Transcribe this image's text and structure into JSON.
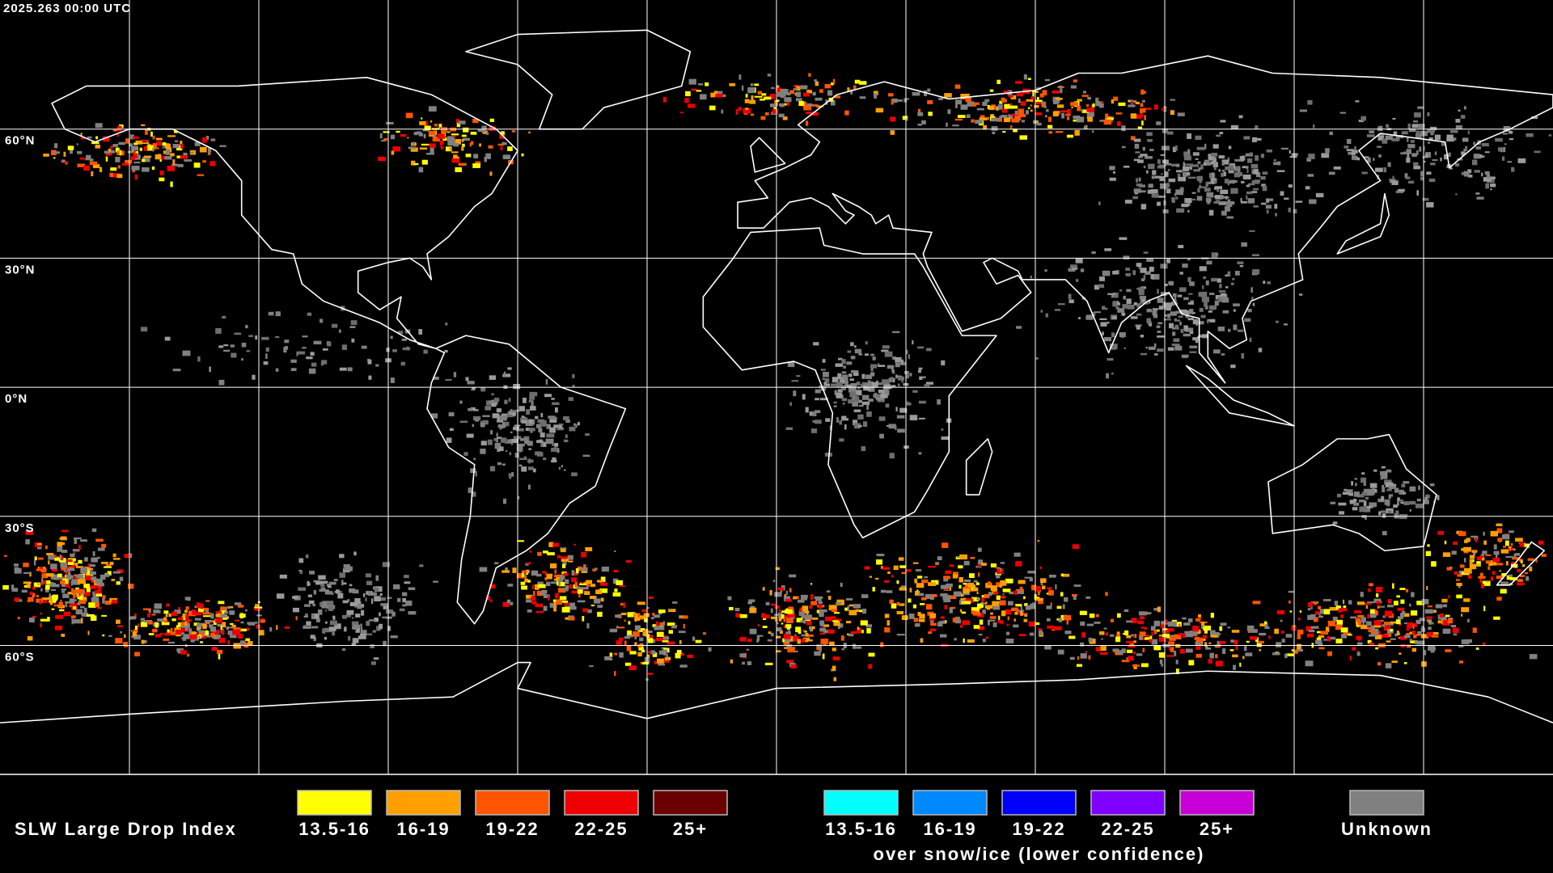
{
  "header": {
    "timestamp": "2025.263 00:00 UTC"
  },
  "map": {
    "latitude_labels": [
      "60°N",
      "30°N",
      "0°N",
      "30°S",
      "60°S"
    ]
  },
  "legend": {
    "title": "SLW Large Drop Index",
    "groups": [
      {
        "items": [
          {
            "label": "13.5-16",
            "color": "#ffff00"
          },
          {
            "label": "16-19",
            "color": "#ffa000"
          },
          {
            "label": "19-22",
            "color": "#ff5500"
          },
          {
            "label": "22-25",
            "color": "#ee0000"
          },
          {
            "label": "25+",
            "color": "#6a0000"
          }
        ]
      },
      {
        "items": [
          {
            "label": "13.5-16",
            "color": "#00ffff"
          },
          {
            "label": "16-19",
            "color": "#0088ff"
          },
          {
            "label": "19-22",
            "color": "#0000ff"
          },
          {
            "label": "22-25",
            "color": "#8000ff"
          },
          {
            "label": "25+",
            "color": "#c800d8"
          }
        ],
        "caption": "over snow/ice (lower confidence)"
      },
      {
        "items": [
          {
            "label": "Unknown",
            "color": "#808080"
          }
        ]
      }
    ]
  }
}
